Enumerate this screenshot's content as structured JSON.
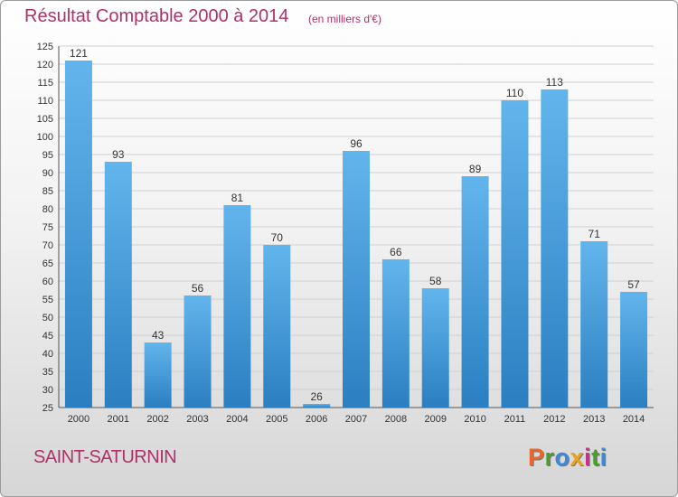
{
  "header": {
    "title": "Résultat Comptable 2000 à 2014",
    "subtitle": "(en milliers d'€)"
  },
  "footer": {
    "location": "SAINT-SATURNIN",
    "brand": "Proxiti"
  },
  "colors": {
    "title": "#b0306a",
    "bar_light": "#5fb2ea",
    "bar_dark": "#2a7fc0",
    "brand_letters": [
      "#e8662a",
      "#4a9e2a",
      "#3a8ad8",
      "#e8a41a",
      "#c8308a",
      "#4a9e2a",
      "#3a8ad8"
    ]
  },
  "chart_data": {
    "type": "bar",
    "categories": [
      "2000",
      "2001",
      "2002",
      "2003",
      "2004",
      "2005",
      "2006",
      "2007",
      "2008",
      "2009",
      "2010",
      "2011",
      "2012",
      "2013",
      "2014"
    ],
    "values": [
      121,
      93,
      43,
      56,
      81,
      70,
      26,
      96,
      66,
      58,
      89,
      110,
      113,
      71,
      57
    ],
    "ylim": [
      25,
      125
    ],
    "yticks": [
      25,
      30,
      35,
      40,
      45,
      50,
      55,
      60,
      65,
      70,
      75,
      80,
      85,
      90,
      95,
      100,
      105,
      110,
      115,
      120,
      125
    ],
    "grid": "horizontal",
    "data_labels": true
  }
}
